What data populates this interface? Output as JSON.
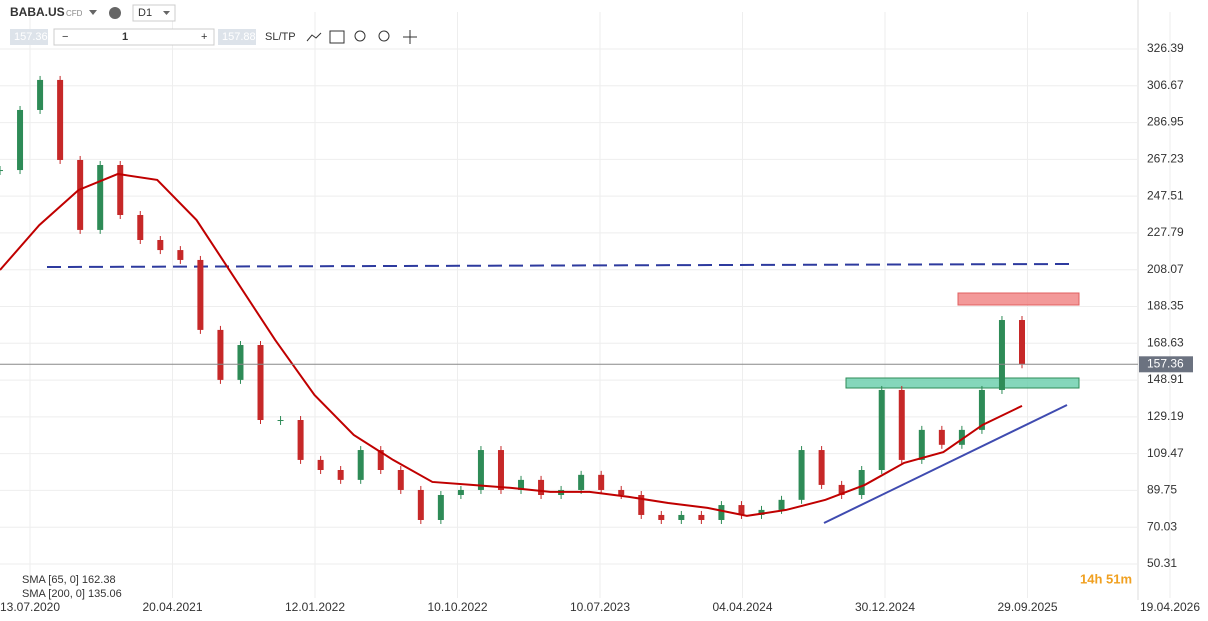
{
  "toolbar": {
    "symbol": "BABA.US",
    "kind": "CFD",
    "timeframe": "D1",
    "bid": "157.36",
    "volume": "1",
    "ask": "157.88",
    "sltp": "SL/TP"
  },
  "chart_data": {
    "type": "candlestick",
    "up_color": "#2e8b57",
    "down_color": "#c62828",
    "ylim": [
      36.37,
      346.22
    ],
    "yticks": [
      50.31,
      70.03,
      89.75,
      109.47,
      129.19,
      148.91,
      168.63,
      188.35,
      208.07,
      227.79,
      247.51,
      267.23,
      286.95,
      306.67,
      326.39
    ],
    "xticks": [
      "13.07.2020",
      "20.04.2021",
      "12.01.2022",
      "10.10.2022",
      "10.07.2023",
      "04.04.2024",
      "30.12.2024",
      "29.09.2025",
      "19.04.2026"
    ],
    "grid": true,
    "series": [
      {
        "name": "BABA.US",
        "values": [
          261.5,
          293.7,
          309.8,
          266.9,
          229.4,
          264.2,
          237.4,
          224,
          218.6,
          213.3,
          175.8,
          149,
          167.7,
          127.5,
          127.5,
          106.1,
          100.7,
          95.4,
          111.4,
          100.7,
          90,
          73.9,
          87.3,
          90,
          111.4,
          90,
          95.4,
          87.3,
          90,
          98.1,
          90,
          87.3,
          76.6,
          73.9,
          76.6,
          73.9,
          81.9,
          76.6,
          79.3,
          84.7,
          111.4,
          92.7,
          87.3,
          100.7,
          143.6,
          106.1,
          122.2,
          114.2,
          122.2,
          143.6,
          181.1,
          157.36
        ]
      },
      {
        "name": "SMA [200, 0]",
        "color": "#c00000",
        "values": [
          207.9,
          232,
          250.8,
          259.4,
          256.2,
          234.7,
          202.6,
          170.4,
          140.9,
          119.5,
          106.1,
          94.3,
          92.7,
          91.1,
          89,
          89,
          86.3,
          83,
          80.4,
          76.1,
          79.3,
          84.7,
          92.7,
          104.5,
          110.3,
          124.9,
          135.06
        ]
      }
    ],
    "last_price": 157.36,
    "indicators": [
      "SMA [65, 0] 162.38",
      "SMA [200, 0] 135.06"
    ],
    "countdown": "14h 51m"
  }
}
